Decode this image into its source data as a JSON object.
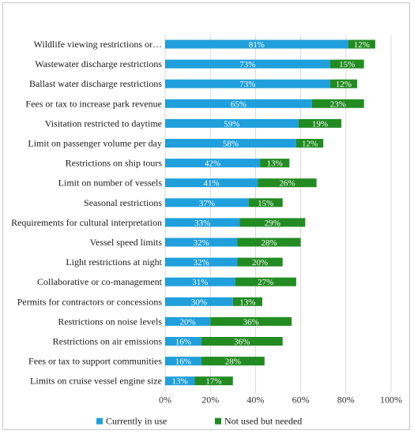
{
  "chart_data": {
    "type": "bar",
    "orientation": "horizontal",
    "stacked": true,
    "categories": [
      "Wildlife viewing restrictions or…",
      "Wastewater discharge restrictions",
      "Ballast water discharge restrictions",
      "Fees or tax to increase park revenue",
      "Visitation restricted to daytime",
      "Limit on passenger volume per day",
      "Restrictions on ship tours",
      "Limit on number of vessels",
      "Seasonal restrictions",
      "Requirements for cultural interpretation",
      "Vessel speed limits",
      "Light restrictions at night",
      "Collaborative or co-management",
      "Permits for contractors or concessions",
      "Restrictions on noise levels",
      "Restrictions on air emissions",
      "Fees or tax to support communities",
      "Limits on cruise vessel engine size"
    ],
    "series": [
      {
        "name": "Currently in use",
        "color": "#1f9fdb",
        "values": [
          81,
          73,
          73,
          65,
          59,
          58,
          42,
          41,
          37,
          33,
          32,
          32,
          31,
          30,
          20,
          16,
          16,
          13
        ],
        "labels": [
          "81%",
          "73%",
          "73%",
          "65%",
          "59%",
          "58%",
          "42%",
          "41%",
          "37%",
          "33%",
          "32%",
          "32%",
          "31%",
          "30%",
          "20%",
          "16%",
          "16%",
          "13%"
        ]
      },
      {
        "name": "Not used but needed",
        "color": "#228b22",
        "values": [
          12,
          15,
          12,
          23,
          19,
          12,
          13,
          26,
          15,
          29,
          28,
          20,
          27,
          13,
          36,
          36,
          28,
          17
        ],
        "labels": [
          "12%",
          "15%",
          "12%",
          "23%",
          "19%",
          "12%",
          "13%",
          "26%",
          "15%",
          "29%",
          "28%",
          "20%",
          "27%",
          "13%",
          "36%",
          "36%",
          "28%",
          "17%"
        ]
      }
    ],
    "xlim": [
      0,
      100
    ],
    "xticks": [
      "0%",
      "20%",
      "40%",
      "60%",
      "80%",
      "100%"
    ],
    "grid": true,
    "legend_position": "bottom"
  }
}
